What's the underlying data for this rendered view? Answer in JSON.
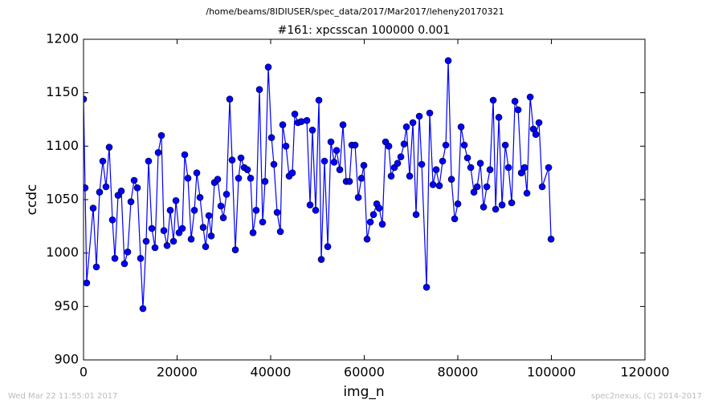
{
  "chart_data": {
    "type": "line",
    "title": "/home/beams/8IDIUSER/spec_data/2017/Mar2017/leheny20170321",
    "subtitle": "#161: xpcsscan 100000 0.001",
    "x_label": "img_n",
    "y_label": "ccdc",
    "footer_left": "Wed Mar 22 11:55:01 2017",
    "footer_right": "spec2nexus, (C) 2014-2017",
    "color": "#0000ff",
    "marker": "circle",
    "xlim": [
      0,
      120000
    ],
    "xticks": [
      0,
      20000,
      40000,
      60000,
      80000,
      100000,
      120000
    ],
    "ylim": [
      900,
      1200
    ],
    "yticks": [
      900,
      950,
      1000,
      1050,
      1100,
      1150,
      1200
    ],
    "grid": false,
    "x": [
      0,
      335,
      671,
      2060,
      2750,
      3430,
      4120,
      4800,
      5490,
      6180,
      6700,
      7380,
      8070,
      8750,
      9440,
      10130,
      10820,
      11500,
      12190,
      12700,
      13390,
      13900,
      14600,
      15280,
      15970,
      16650,
      17170,
      17860,
      18540,
      19230,
      19750,
      20430,
      21120,
      21630,
      22320,
      23010,
      23700,
      24210,
      24900,
      25580,
      26100,
      26790,
      27300,
      27990,
      28670,
      29360,
      29880,
      30560,
      31250,
      31760,
      32450,
      33140,
      33650,
      34340,
      35030,
      35710,
      36230,
      36910,
      37600,
      38290,
      38800,
      39490,
      40180,
      40690,
      41380,
      42070,
      42580,
      43270,
      43950,
      44640,
      45160,
      45840,
      46530,
      47730,
      48420,
      48930,
      49620,
      50310,
      50820,
      51510,
      52200,
      52880,
      53570,
      54090,
      54770,
      55460,
      56150,
      56840,
      57350,
      58040,
      58720,
      59410,
      59920,
      60610,
      61300,
      61980,
      62670,
      63190,
      63870,
      64560,
      65250,
      65760,
      66450,
      67130,
      67820,
      68510,
      69020,
      69710,
      70400,
      71080,
      71770,
      72290,
      73320,
      74000,
      74690,
      75380,
      76060,
      76750,
      77440,
      77950,
      78640,
      79330,
      80010,
      80700,
      81390,
      82070,
      82760,
      83450,
      84140,
      84820,
      85510,
      86200,
      86880,
      87570,
      88090,
      88770,
      89460,
      90150,
      90830,
      91520,
      92210,
      92890,
      93580,
      94270,
      94780,
      95470,
      96150,
      96670,
      97350,
      98040,
      99410,
      99930
    ],
    "values": [
      1144,
      1061,
      972,
      1042,
      987,
      1057,
      1086,
      1062,
      1099,
      1031,
      995,
      1054,
      1058,
      990,
      1001,
      1048,
      1068,
      1061,
      995,
      948,
      1011,
      1086,
      1023,
      1005,
      1094,
      1110,
      1021,
      1007,
      1040,
      1011,
      1049,
      1019,
      1023,
      1092,
      1070,
      1013,
      1040,
      1075,
      1052,
      1024,
      1006,
      1035,
      1016,
      1066,
      1069,
      1044,
      1033,
      1055,
      1144,
      1087,
      1003,
      1070,
      1089,
      1080,
      1078,
      1070,
      1019,
      1040,
      1153,
      1029,
      1067,
      1174,
      1108,
      1083,
      1038,
      1020,
      1120,
      1100,
      1072,
      1075,
      1130,
      1122,
      1123,
      1124,
      1045,
      1115,
      1040,
      1143,
      994,
      1086,
      1006,
      1104,
      1085,
      1096,
      1078,
      1120,
      1067,
      1067,
      1101,
      1101,
      1052,
      1070,
      1082,
      1013,
      1029,
      1036,
      1046,
      1042,
      1027,
      1104,
      1100,
      1072,
      1080,
      1084,
      1090,
      1102,
      1118,
      1072,
      1122,
      1036,
      1128,
      1083,
      968,
      1131,
      1064,
      1078,
      1063,
      1086,
      1101,
      1180,
      1069,
      1032,
      1046,
      1118,
      1101,
      1089,
      1080,
      1057,
      1062,
      1084,
      1043,
      1062,
      1078,
      1143,
      1041,
      1127,
      1045,
      1101,
      1080,
      1047,
      1142,
      1134,
      1075,
      1080,
      1056,
      1146,
      1116,
      1111,
      1122,
      1062,
      1080,
      1013
    ]
  }
}
